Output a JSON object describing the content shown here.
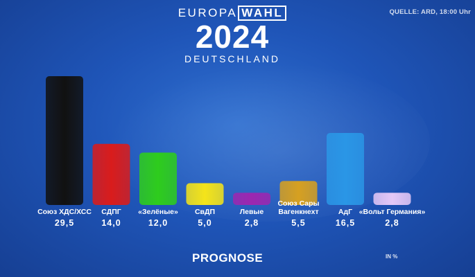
{
  "source": "QUELLE: ARD, 18:00 Uhr",
  "logo": {
    "europa": "EUROPA",
    "wahl": "WAHL",
    "year": "2024",
    "country": "DEUTSCHLAND"
  },
  "footer": {
    "prognose": "PROGNOSE",
    "unit": "IN %"
  },
  "chart_data": {
    "type": "bar",
    "title": "",
    "xlabel": "",
    "ylabel": "",
    "ylim": [
      0,
      30
    ],
    "categories": [
      "Союз ХДС/ХСС",
      "СДПГ",
      "«Зелёные»",
      "СвДП",
      "Левые",
      "Союз Сары\nВагенкнехт",
      "АдГ",
      "«Вольт Германия»"
    ],
    "values": [
      29.5,
      14.0,
      12.0,
      5.0,
      2.8,
      5.5,
      16.5,
      2.8
    ],
    "value_labels": [
      "29,5",
      "14,0",
      "12,0",
      "5,0",
      "2,8",
      "5,5",
      "16,5",
      "2,8"
    ],
    "colors": [
      "#111111",
      "#d91c1c",
      "#2ecc1d",
      "#f4e41a",
      "#9c27b0",
      "#d6a021",
      "#2a96e6",
      "#e4c8f7"
    ]
  }
}
